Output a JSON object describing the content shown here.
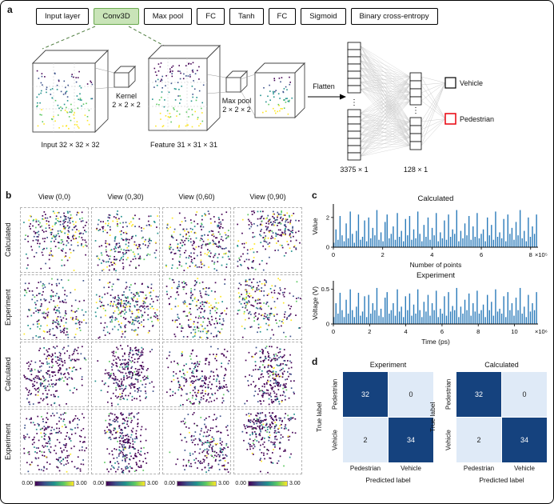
{
  "figure": {
    "panel_a_label": "a",
    "panel_b_label": "b",
    "panel_c_label": "c",
    "panel_d_label": "d"
  },
  "panel_a": {
    "pipeline": [
      {
        "label": "Input layer"
      },
      {
        "label": "Conv3D"
      },
      {
        "label": "Max pool"
      },
      {
        "label": "FC"
      },
      {
        "label": "Tanh"
      },
      {
        "label": "FC"
      },
      {
        "label": "Sigmoid"
      },
      {
        "label": "Binary cross-entropy"
      }
    ],
    "input_caption": "Input 32 × 32 × 32",
    "kernel_caption_line1": "Kernel",
    "kernel_caption_line2": "2 × 2 × 2",
    "feature_caption": "Feature 31 × 31 × 31",
    "maxpool_caption_line1": "Max pool",
    "maxpool_caption_line2": "2 × 2 × 2",
    "flatten_label": "Flatten",
    "flatten_dim": "3375 × 1",
    "fc_dim": "128 × 1",
    "ellipsis": "⋮",
    "output_classes": [
      {
        "label": "Vehicle"
      },
      {
        "label": "Pedestrian"
      }
    ]
  },
  "panel_b": {
    "columns": [
      "View (0,0)",
      "View (0,30)",
      "View (0,60)",
      "View (0,90)"
    ],
    "rows": [
      "Calculated",
      "Experiment",
      "Calculated",
      "Experiment"
    ],
    "colorbar_min": "0.00",
    "colorbar_max": "3.00"
  },
  "chart_data": [
    {
      "type": "bar",
      "title": "Calculated",
      "ylabel": "Value",
      "xlabel": "Number of points",
      "x_exponent": "×10⁵",
      "xlim": [
        0,
        8.3
      ],
      "ylim": [
        0,
        2.8
      ],
      "xticks": [
        0,
        2,
        4,
        6,
        8
      ],
      "yticks": [
        0,
        2
      ],
      "values": [
        0.3,
        1.2,
        0.5,
        2.1,
        0.8,
        0.4,
        1.6,
        0.6,
        2.4,
        0.9,
        0.3,
        1.1,
        2.2,
        0.5,
        0.7,
        1.8,
        0.4,
        2.0,
        0.6,
        1.3,
        0.8,
        2.5,
        0.5,
        1.0,
        0.4,
        1.7,
        2.2,
        0.6,
        0.9,
        1.4,
        0.5,
        2.3,
        0.7,
        1.1,
        0.4,
        1.9,
        0.8,
        2.1,
        0.5,
        1.2,
        0.6,
        2.4,
        0.9,
        0.4,
        1.5,
        0.7,
        2.0,
        0.5,
        1.3,
        0.8,
        2.3,
        0.4,
        1.0,
        0.6,
        1.8,
        0.5,
        2.2,
        0.7,
        1.2,
        0.9,
        2.5,
        0.4,
        1.1,
        0.6,
        1.6,
        0.8,
        2.1,
        0.5,
        1.4,
        0.7,
        2.3,
        0.6,
        0.9,
        1.2,
        0.4,
        2.0,
        0.8,
        1.5,
        0.5,
        2.4,
        0.7,
        1.0,
        0.6,
        1.9,
        0.4,
        2.2,
        0.9,
        1.3,
        0.5,
        1.7,
        0.8,
        2.5,
        0.6,
        1.1,
        0.4,
        2.0,
        0.7,
        1.4,
        0.9,
        2.2
      ]
    },
    {
      "type": "bar",
      "title": "Experiment",
      "ylabel": "Voltage (V)",
      "xlabel": "Time (ps)",
      "x_exponent": "×10⁶",
      "xlim": [
        0,
        11.3
      ],
      "ylim": [
        0,
        0.6
      ],
      "xticks": [
        0,
        2,
        4,
        6,
        8,
        10
      ],
      "yticks": [
        0,
        0.5
      ],
      "values": [
        0.1,
        0.3,
        0.15,
        0.45,
        0.2,
        0.1,
        0.35,
        0.15,
        0.5,
        0.2,
        0.1,
        0.25,
        0.45,
        0.12,
        0.18,
        0.4,
        0.1,
        0.42,
        0.15,
        0.3,
        0.2,
        0.52,
        0.12,
        0.22,
        0.1,
        0.38,
        0.46,
        0.15,
        0.2,
        0.3,
        0.12,
        0.5,
        0.18,
        0.25,
        0.1,
        0.4,
        0.2,
        0.44,
        0.12,
        0.28,
        0.15,
        0.5,
        0.2,
        0.1,
        0.32,
        0.18,
        0.42,
        0.12,
        0.3,
        0.2,
        0.48,
        0.1,
        0.22,
        0.15,
        0.4,
        0.12,
        0.46,
        0.18,
        0.26,
        0.2,
        0.52,
        0.1,
        0.25,
        0.15,
        0.35,
        0.2,
        0.44,
        0.12,
        0.3,
        0.18,
        0.48,
        0.15,
        0.2,
        0.28,
        0.1,
        0.42,
        0.2,
        0.32,
        0.12,
        0.5,
        0.18,
        0.22,
        0.15,
        0.4,
        0.1,
        0.46,
        0.2,
        0.3,
        0.12,
        0.38,
        0.2,
        0.52,
        0.15,
        0.25,
        0.1,
        0.42,
        0.18,
        0.3,
        0.2,
        0.46
      ]
    },
    {
      "type": "heatmap",
      "title": "Experiment",
      "ylabel": "True label",
      "xlabel": "Predicted label",
      "rows": [
        "Pedestrian",
        "Vehicle"
      ],
      "cols": [
        "Pedestrian",
        "Vehicle"
      ],
      "values": [
        [
          32,
          0
        ],
        [
          2,
          34
        ]
      ]
    },
    {
      "type": "heatmap",
      "title": "Calculated",
      "ylabel": "True label",
      "xlabel": "Predicted label",
      "rows": [
        "Pedestrian",
        "Vehicle"
      ],
      "cols": [
        "Pedestrian",
        "Vehicle"
      ],
      "values": [
        [
          32,
          0
        ],
        [
          2,
          34
        ]
      ]
    }
  ],
  "colors": {
    "viridis": [
      "#440154",
      "#3b528b",
      "#21918c",
      "#5ec962",
      "#fde725"
    ],
    "spike_blue": "#2b7bba",
    "cm_dark": "#15427e",
    "cm_light": "#dfeaf7",
    "pedestrian_red": "#e8000b",
    "conv_green_fill": "#c9e4b8",
    "conv_green_border": "#6aa84f"
  }
}
